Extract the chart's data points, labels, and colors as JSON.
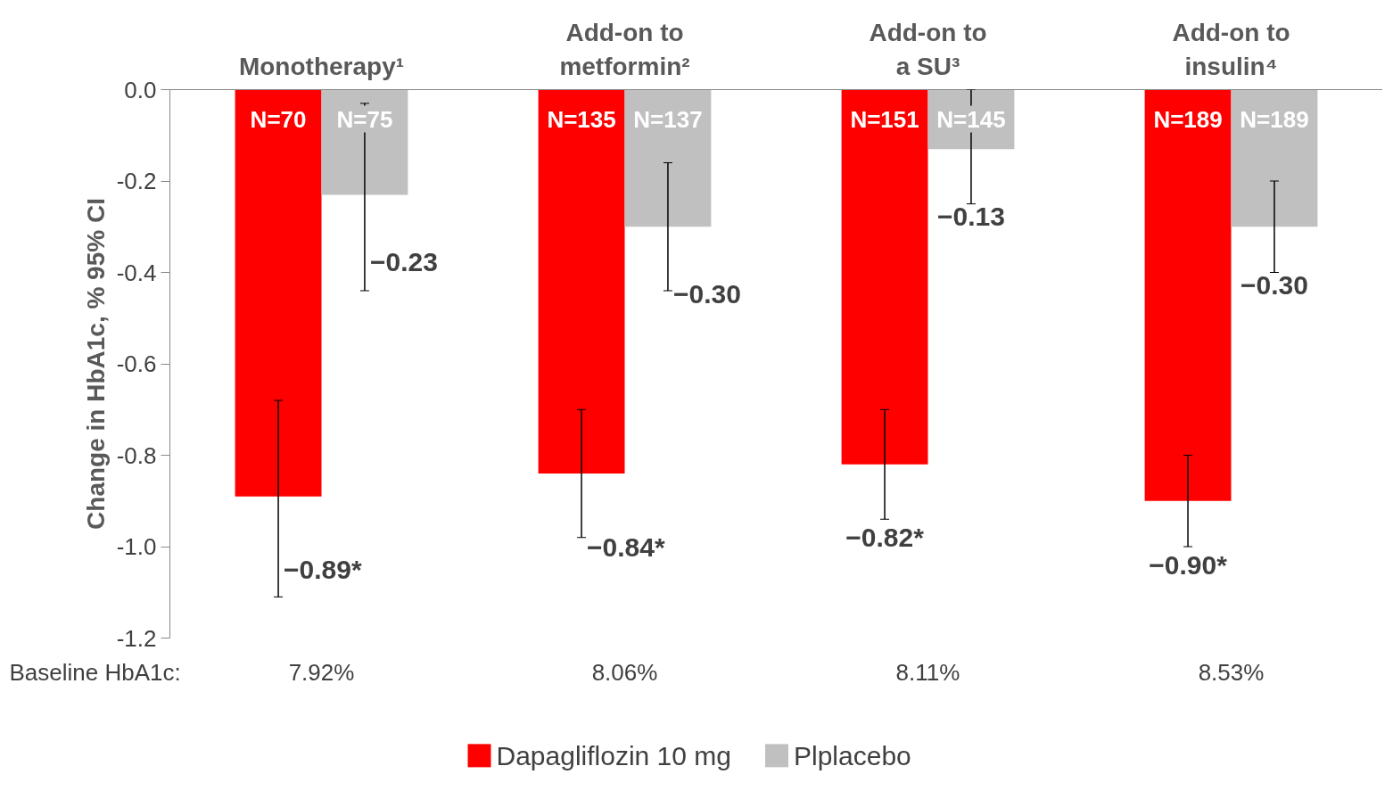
{
  "chart_data": {
    "type": "bar",
    "categories": [
      "Monotherapy¹",
      "Add-on to metformin²",
      "Add-on to a SU³",
      "Add-on to insulin⁴"
    ],
    "ylabel": "Change in HbA1c, % 95% CI",
    "ylim": [
      -1.2,
      0
    ],
    "yticks": [
      {
        "value": 0,
        "label": "0.0"
      },
      {
        "value": -0.2,
        "label": "-0.2"
      },
      {
        "value": -0.4,
        "label": "-0.4"
      },
      {
        "value": -0.6,
        "label": "-0.6"
      },
      {
        "value": -0.8,
        "label": "-0.8"
      },
      {
        "value": -1.0,
        "label": "-1.0"
      },
      {
        "value": -1.2,
        "label": "-1.2"
      }
    ],
    "series": [
      {
        "name": "Dapagliflozin 10 mg",
        "color": "#ff0000",
        "values": [
          -0.89,
          -0.84,
          -0.82,
          -0.9
        ],
        "errors": [
          [
            -1.11,
            -0.68
          ],
          [
            -0.98,
            -0.7
          ],
          [
            -0.94,
            -0.7
          ],
          [
            -1.0,
            -0.8
          ]
        ],
        "value_labels": [
          "−0.89*",
          "−0.84*",
          "−0.82*",
          "−0.90*"
        ]
      },
      {
        "name": "Plplacebo",
        "color": "#c0c0c0",
        "values": [
          -0.23,
          -0.3,
          -0.13,
          -0.3
        ],
        "errors": [
          [
            -0.44,
            -0.03
          ],
          [
            -0.44,
            -0.16
          ],
          [
            -0.25,
            0.0
          ],
          [
            -0.4,
            -0.2
          ]
        ],
        "value_labels": [
          "−0.23",
          "−0.30",
          "−0.13",
          "−0.30"
        ]
      }
    ],
    "annotations": [
      "N=70",
      "N=75",
      "N=135",
      "N=137",
      "N=151",
      "N=145",
      "N=189",
      "N=189",
      "Baseline HbA1c:",
      "7.92%",
      "8.06%",
      "8.11%",
      "8.53%"
    ],
    "grid": false,
    "legend": "bottom"
  }
}
